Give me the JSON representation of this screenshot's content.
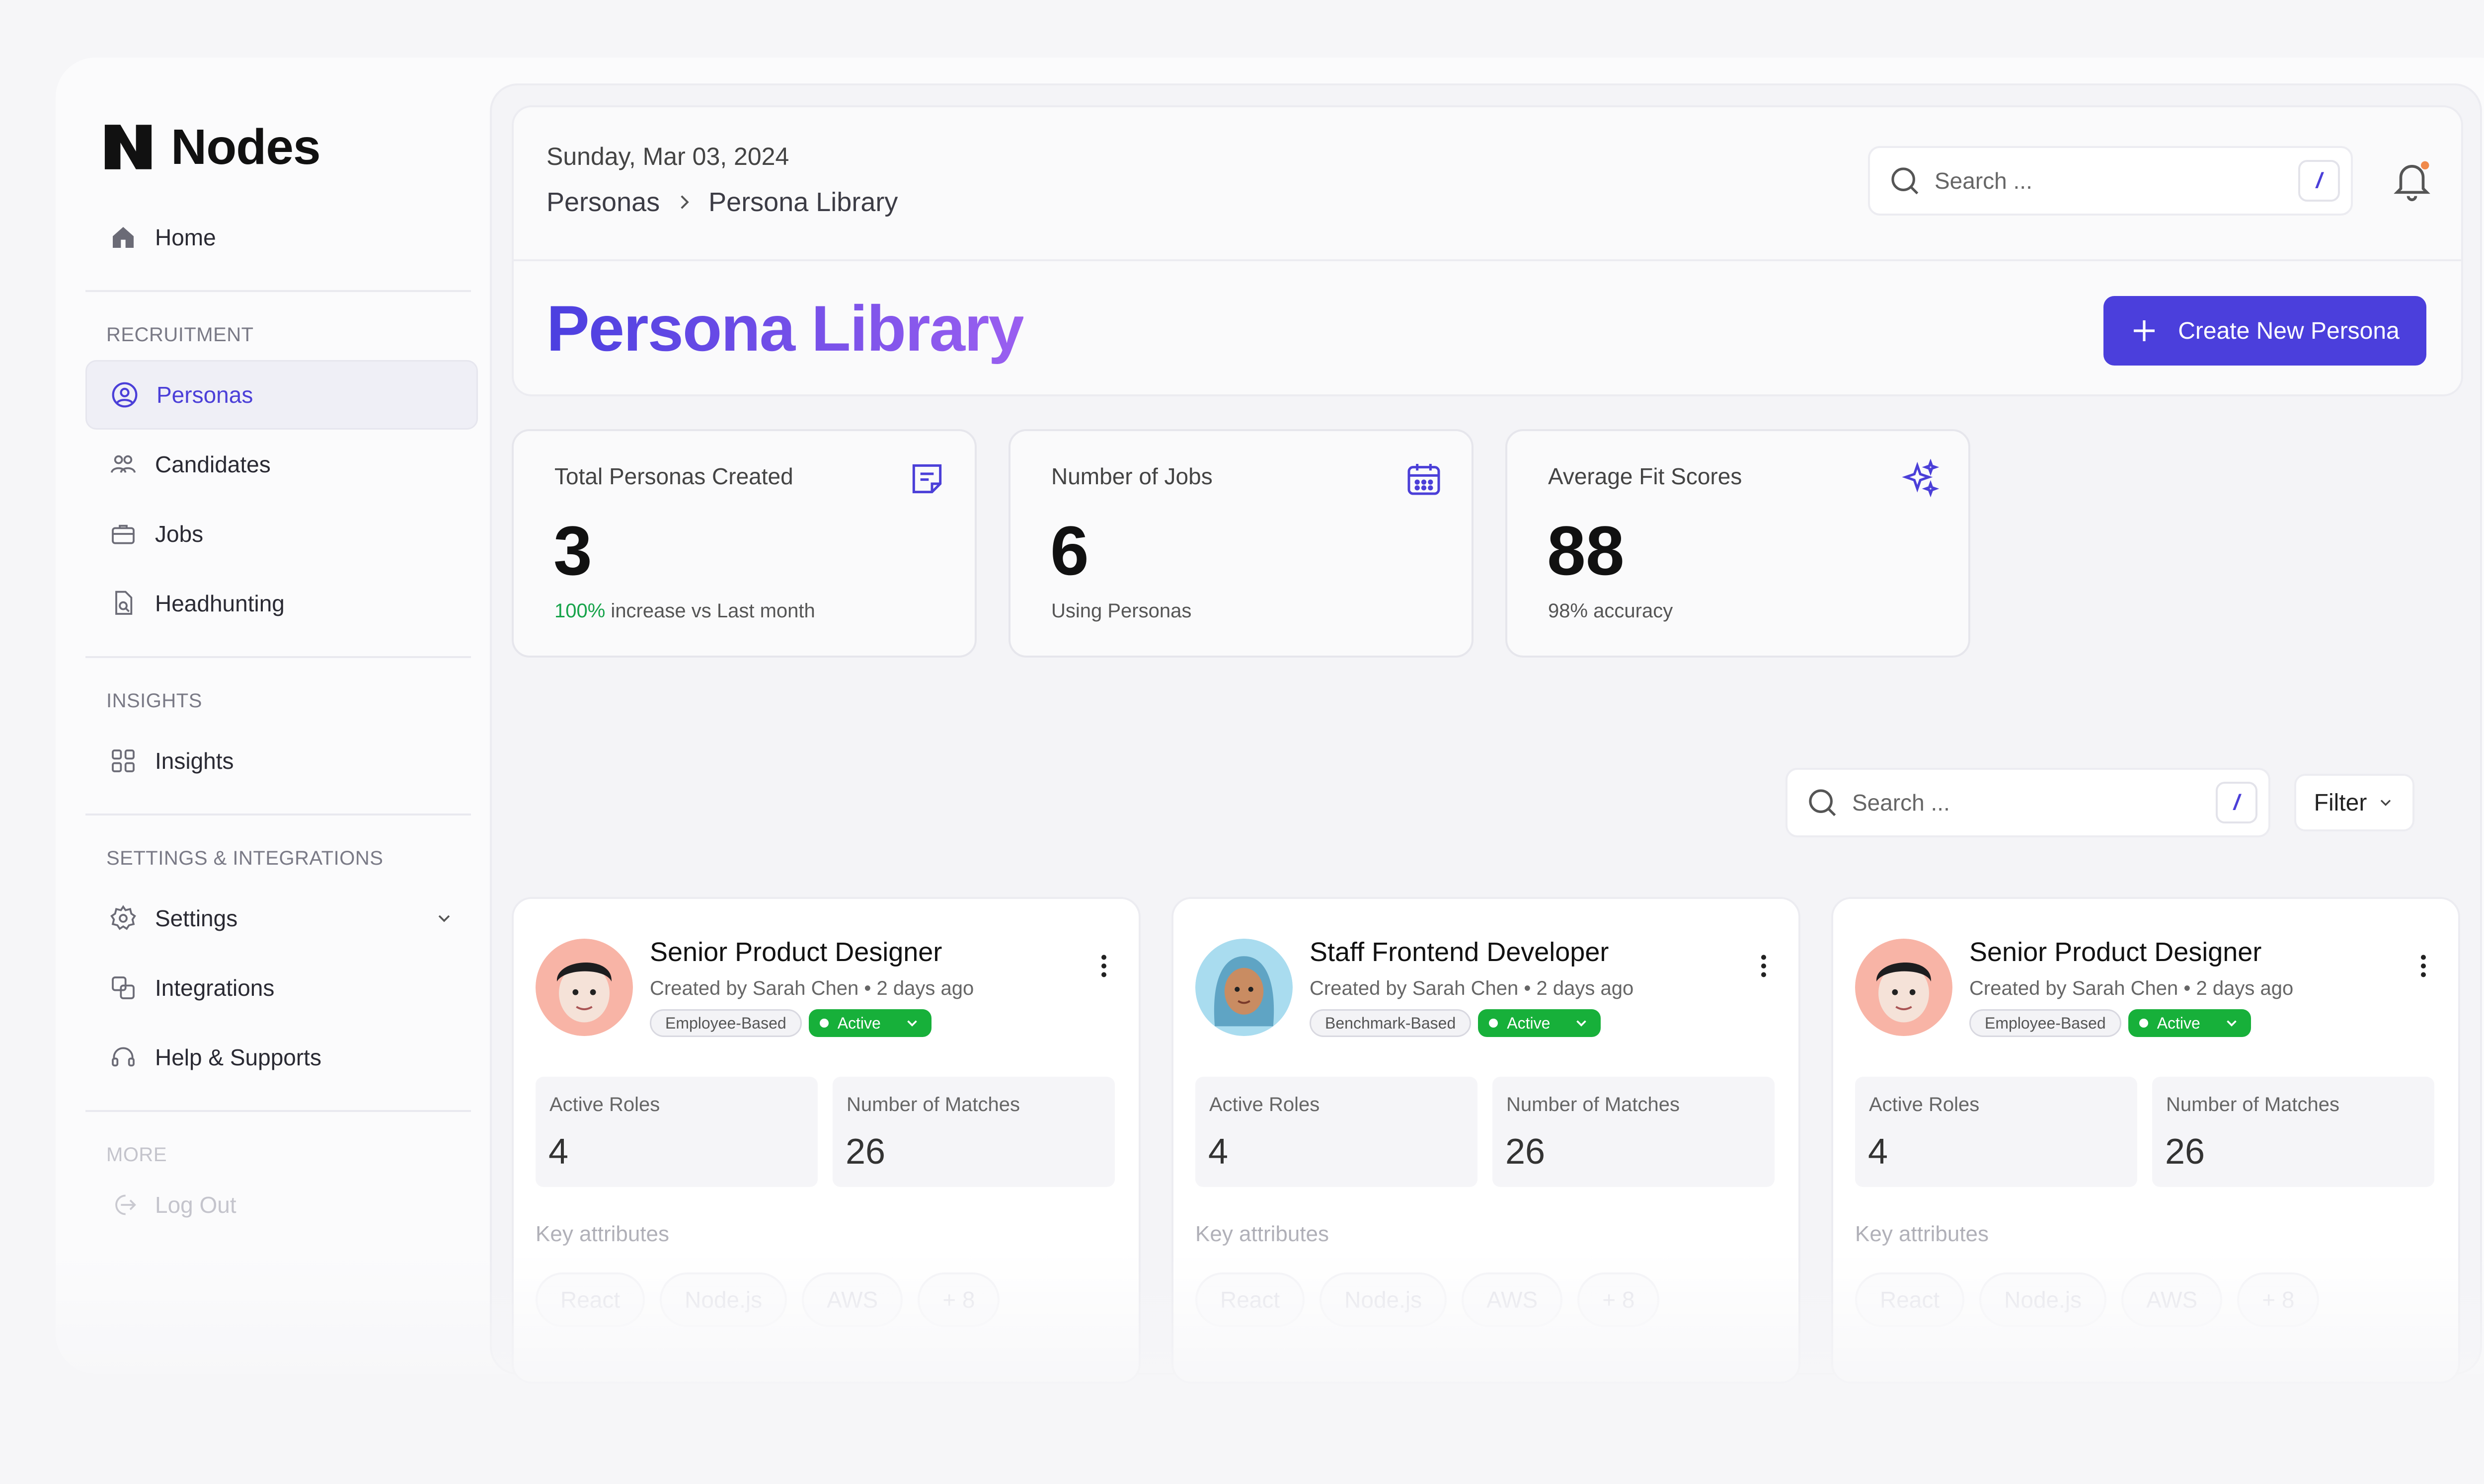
{
  "app": {
    "name": "Nodes"
  },
  "sidebar": {
    "home": "Home",
    "sections": {
      "recruitment": "RECRUITMENT",
      "insights": "INSIGHTS",
      "settings": "SETTINGS & INTEGRATIONS",
      "more": "MORE"
    },
    "items": {
      "personas": "Personas",
      "candidates": "Candidates",
      "jobs": "Jobs",
      "headhunting": "Headhunting",
      "insights": "Insights",
      "settings": "Settings",
      "integrations": "Integrations",
      "help": "Help & Supports",
      "logout": "Log Out"
    }
  },
  "header": {
    "date": "Sunday, Mar 03, 2024",
    "breadcrumb": [
      "Personas",
      "Persona Library"
    ],
    "search_placeholder": "Search ...",
    "shortcut": "/",
    "title": "Persona Library",
    "create_button": "Create New Persona"
  },
  "stats": [
    {
      "label": "Total Personas Created",
      "value": "3",
      "highlight": "100%",
      "note": " increase vs Last month",
      "icon": "notes-icon"
    },
    {
      "label": "Number of Jobs",
      "value": "6",
      "highlight": "",
      "note": "Using Personas",
      "icon": "calendar-icon"
    },
    {
      "label": "Average Fit Scores",
      "value": "88",
      "highlight": "",
      "note": "98% accuracy",
      "icon": "sparkles-icon"
    }
  ],
  "filters": {
    "search_placeholder": "Search ...",
    "shortcut": "/",
    "filter_label": "Filter"
  },
  "personas": [
    {
      "title": "Senior Product Designer",
      "created": "Created by Sarah Chen • 2 days ago",
      "type": "Employee-Based",
      "status": "Active",
      "active_roles_label": "Active Roles",
      "active_roles": "4",
      "matches_label": "Number of Matches",
      "matches": "26",
      "key_attributes_label": "Key attributes",
      "attributes": [
        "React",
        "Node.js",
        "AWS",
        "+ 8"
      ]
    },
    {
      "title": "Staff Frontend Developer",
      "created": "Created by Sarah Chen • 2 days ago",
      "type": "Benchmark-Based",
      "status": "Active",
      "active_roles_label": "Active Roles",
      "active_roles": "4",
      "matches_label": "Number of Matches",
      "matches": "26",
      "key_attributes_label": "Key attributes",
      "attributes": [
        "React",
        "Node.js",
        "AWS",
        "+ 8"
      ]
    },
    {
      "title": "Senior Product Designer",
      "created": "Created by Sarah Chen • 2 days ago",
      "type": "Employee-Based",
      "status": "Active",
      "active_roles_label": "Active Roles",
      "active_roles": "4",
      "matches_label": "Number of Matches",
      "matches": "26",
      "key_attributes_label": "Key attributes",
      "attributes": [
        "React",
        "Node.js",
        "AWS",
        "+ 8"
      ]
    }
  ],
  "colors": {
    "accent": "#4b3fdc",
    "active_green": "#17b03a",
    "increase_green": "#16a34a"
  }
}
